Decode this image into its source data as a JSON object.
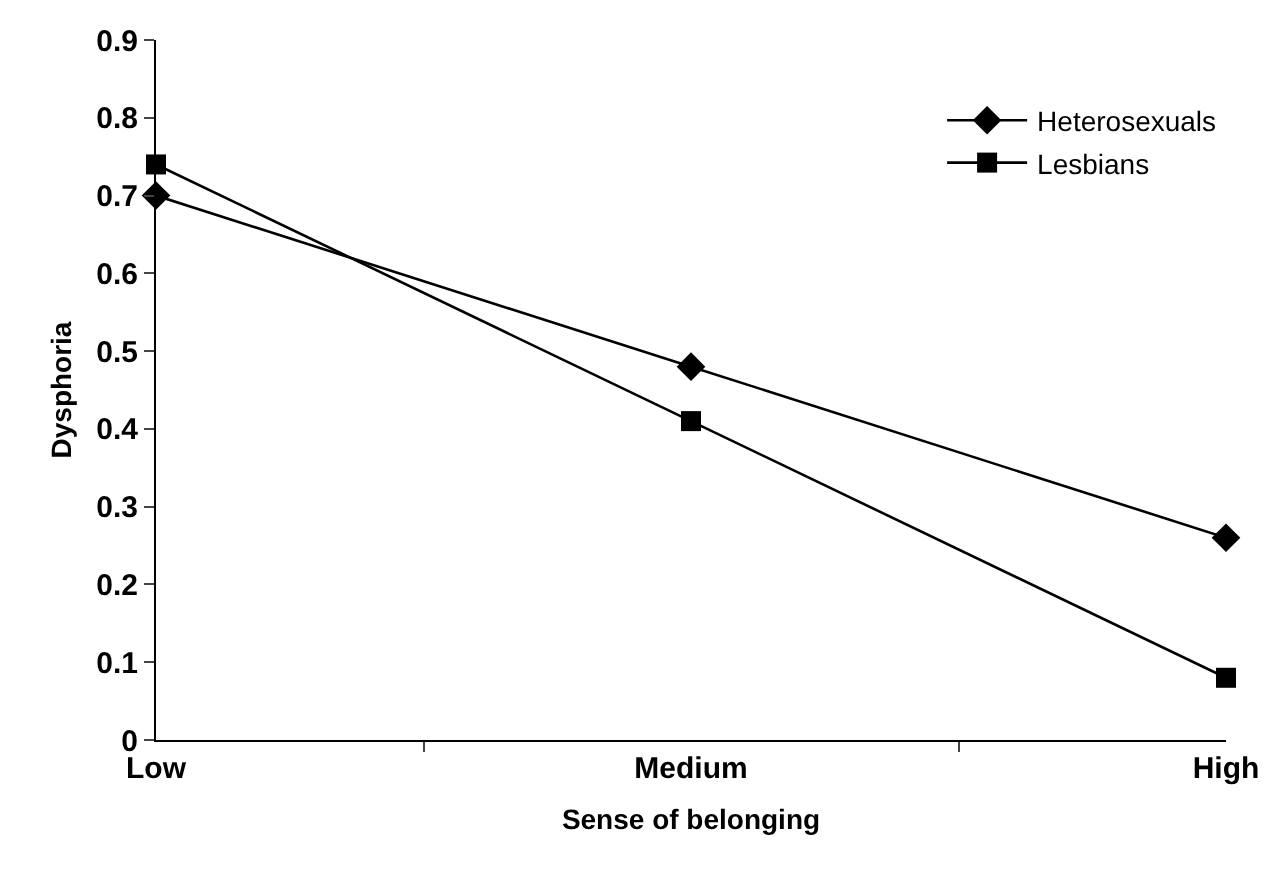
{
  "chart_data": {
    "type": "line",
    "xlabel": "Sense of belonging",
    "ylabel": "Dysphoria",
    "categories": [
      "Low",
      "Medium",
      "High"
    ],
    "series": [
      {
        "name": "Heterosexuals",
        "color": "#000000",
        "marker": "diamond",
        "values": [
          0.7,
          0.48,
          0.26
        ]
      },
      {
        "name": "Lesbians",
        "color": "#000000",
        "marker": "square",
        "values": [
          0.74,
          0.41,
          0.08
        ]
      }
    ],
    "ylim": [
      0,
      0.9
    ],
    "yticks": [
      0,
      0.1,
      0.2,
      0.3,
      0.4,
      0.5,
      0.6,
      0.7,
      0.8,
      0.9
    ],
    "legend": "top right",
    "line_style": "solid"
  }
}
